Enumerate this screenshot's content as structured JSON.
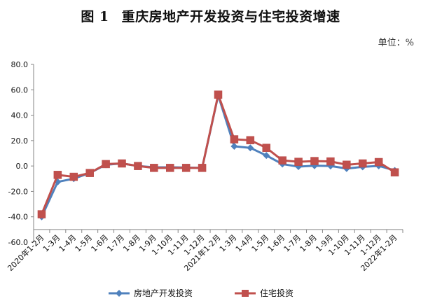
{
  "header": {
    "figure_number": "图 1",
    "title": "重庆房地产开发投资与住宅投资增速",
    "unit_label": "单位：%"
  },
  "legend": {
    "items": [
      {
        "label": "房地产开发投资",
        "color": "#4F81BD",
        "marker": "diamond"
      },
      {
        "label": "住宅投资",
        "color": "#C0504D",
        "marker": "square"
      }
    ]
  },
  "chart_data": {
    "type": "line",
    "title": "图 1 重庆房地产开发投资与住宅投资增速",
    "xlabel": "",
    "ylabel": "单位：%",
    "ylim": [
      -60,
      80
    ],
    "yticks": [
      "80.0",
      "60.0",
      "40.0",
      "20.0",
      "0.0",
      "-20.0",
      "-40.0",
      "-60.0"
    ],
    "x_axis_crosses_at": -50,
    "grid": false,
    "legend_position": "bottom",
    "categories": [
      "2020年1-2月",
      "1-3月",
      "1-4月",
      "1-5月",
      "1-6月",
      "1-7月",
      "1-8月",
      "1-9月",
      "1-10月",
      "1-11月",
      "1-12月",
      "2021年1-2月",
      "1-3月",
      "1-4月",
      "1-5月",
      "1-6月",
      "1-7月",
      "1-8月",
      "1-9月",
      "1-10月",
      "1-11月",
      "1-12月",
      "2022年1-2月"
    ],
    "series": [
      {
        "name": "房地产开发投资",
        "color": "#4F81BD",
        "marker": "diamond",
        "values": [
          -40.0,
          -12.5,
          -10.0,
          -5.5,
          1.0,
          2.0,
          0.0,
          -1.0,
          -1.0,
          -1.2,
          -1.5,
          55.6,
          15.5,
          14.3,
          8.3,
          1.5,
          -0.5,
          0.2,
          0.0,
          -2.0,
          -0.7,
          0.1,
          -3.5
        ]
      },
      {
        "name": "住宅投资",
        "color": "#C0504D",
        "marker": "square",
        "values": [
          -38.0,
          -7.0,
          -8.5,
          -5.5,
          1.5,
          2.0,
          0.0,
          -1.5,
          -1.5,
          -1.5,
          -1.5,
          56.2,
          21.0,
          20.3,
          14.3,
          4.4,
          3.3,
          3.9,
          3.6,
          1.0,
          2.0,
          3.1,
          -5.0
        ]
      }
    ]
  }
}
